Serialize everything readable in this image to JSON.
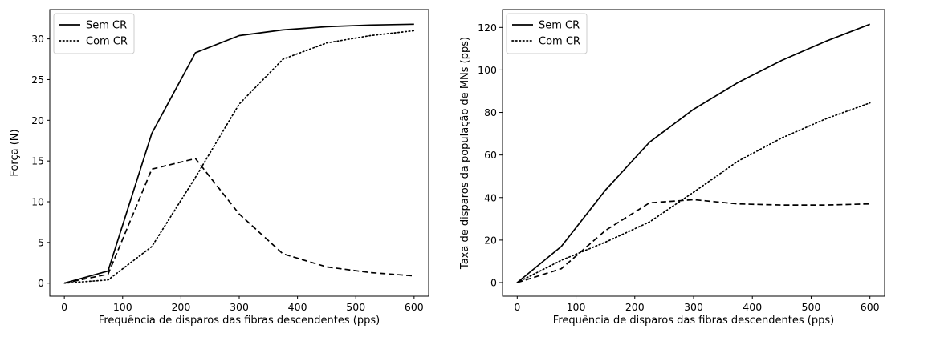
{
  "chart_data": [
    {
      "type": "line",
      "xlabel": "Frequência de disparos das fibras descendentes (pps)",
      "ylabel": "Força (N)",
      "xlim": [
        -25,
        625
      ],
      "ylim": [
        -1.6,
        33.6
      ],
      "xticks": [
        0,
        100,
        200,
        300,
        400,
        500,
        600
      ],
      "yticks": [
        0,
        5,
        10,
        15,
        20,
        25,
        30
      ],
      "grid": false,
      "legend_position": "top-left",
      "series": [
        {
          "name": "Sem CR",
          "style": "solid",
          "x": [
            0,
            75,
            150,
            225,
            300,
            375,
            450,
            525,
            600
          ],
          "y": [
            0,
            1.5,
            18.4,
            28.3,
            30.4,
            31.1,
            31.5,
            31.7,
            31.8
          ]
        },
        {
          "name": "Com CR",
          "style": "dotted",
          "x": [
            0,
            75,
            150,
            225,
            300,
            375,
            450,
            525,
            600
          ],
          "y": [
            0,
            0.4,
            4.5,
            13.0,
            22.0,
            27.5,
            29.5,
            30.4,
            31.0
          ]
        },
        {
          "style": "dashed",
          "x": [
            0,
            75,
            150,
            225,
            300,
            375,
            450,
            525,
            600
          ],
          "y": [
            0,
            1.1,
            14.0,
            15.3,
            8.5,
            3.6,
            2.0,
            1.3,
            0.9
          ]
        }
      ]
    },
    {
      "type": "line",
      "xlabel": "Frequência de disparos das fibras descendentes (pps)",
      "ylabel": "Taxa de disparos da população de MNs (pps)",
      "xlim": [
        -25,
        625
      ],
      "ylim": [
        -6.4,
        128.4
      ],
      "xticks": [
        0,
        100,
        200,
        300,
        400,
        500,
        600
      ],
      "yticks": [
        0,
        20,
        40,
        60,
        80,
        100,
        120
      ],
      "grid": false,
      "legend_position": "top-left",
      "series": [
        {
          "name": "Sem CR",
          "style": "solid",
          "x": [
            0,
            75,
            150,
            225,
            300,
            375,
            450,
            525,
            600
          ],
          "y": [
            0,
            17,
            43.5,
            66,
            81.5,
            94,
            104.5,
            113.5,
            121.5
          ]
        },
        {
          "name": "Com CR",
          "style": "dotted",
          "x": [
            0,
            75,
            150,
            225,
            300,
            375,
            450,
            525,
            600
          ],
          "y": [
            0,
            10.5,
            19,
            28.5,
            42.5,
            57,
            68,
            77,
            84.5
          ]
        },
        {
          "style": "dashed",
          "x": [
            0,
            75,
            150,
            225,
            300,
            375,
            450,
            525,
            600
          ],
          "y": [
            0,
            6.5,
            24.5,
            37.5,
            39,
            37,
            36.5,
            36.5,
            37
          ]
        }
      ]
    }
  ]
}
